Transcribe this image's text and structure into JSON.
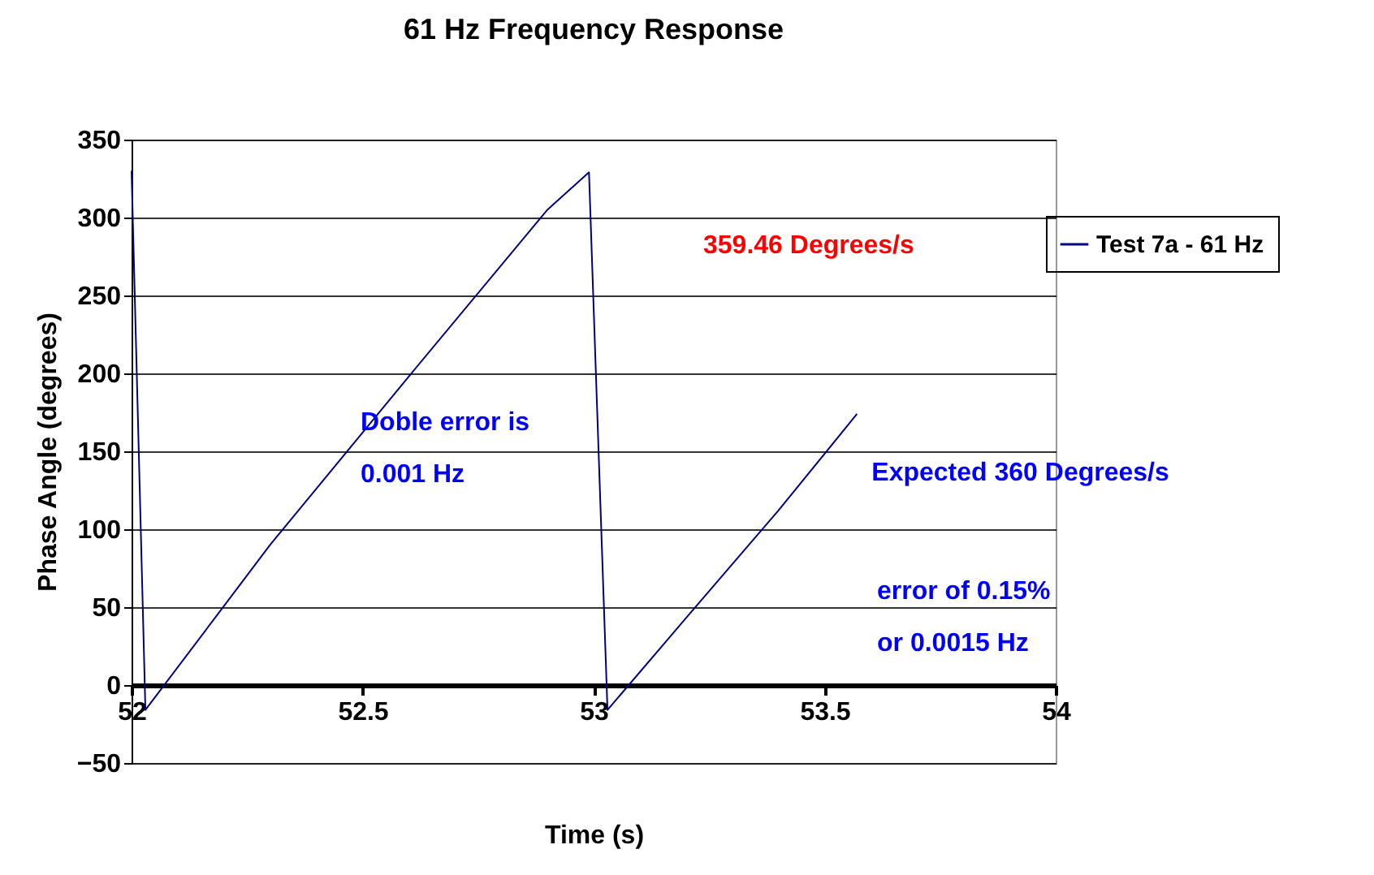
{
  "chart_data": {
    "type": "line",
    "title": "61 Hz Frequency Response",
    "xlabel": "Time (s)",
    "ylabel": "Phase Angle (degrees)",
    "x": [
      52,
      52.03,
      52.3,
      52.6,
      52.9,
      52.99,
      53.03,
      53.2,
      53.4,
      53.57
    ],
    "series": [
      {
        "name": "Test 7a - 61 Hz",
        "color": "#000080",
        "values": [
          330,
          -16,
          90,
          198,
          305,
          329,
          -16,
          43,
          112,
          174
        ]
      }
    ],
    "xlim": [
      52,
      54
    ],
    "xticks": [
      52,
      52.5,
      53,
      53.5,
      54
    ],
    "ylim": [
      -50,
      350
    ],
    "yticks": [
      -50,
      0,
      50,
      100,
      150,
      200,
      250,
      300,
      350
    ],
    "grid": "y",
    "legend": "right",
    "marker": "none",
    "annotations": [
      "359.46 Degrees/s",
      "Doble error is\n0.001 Hz",
      {
        "text": "Expected 360 Degrees/s",
        "x": 53.57,
        "y": 174
      },
      "error of 0.15%\nor 0.0015 Hz"
    ]
  }
}
